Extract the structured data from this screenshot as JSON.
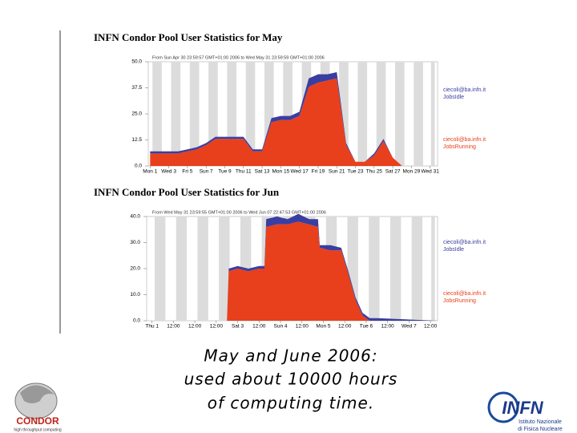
{
  "chart_data": [
    {
      "type": "stacked-area",
      "title": "INFN Condor Pool User Statistics for May",
      "subtitle": "From Sun Apr 30 23:59:57 GMT+01:00 2006 to Wed May 31 23:59:59 GMT+01:00 2006",
      "x": [
        1,
        2,
        3,
        4,
        5,
        6,
        7,
        8,
        9,
        10,
        11,
        12,
        13,
        14,
        15,
        16,
        17,
        18,
        19,
        20,
        21,
        22,
        23,
        24,
        25,
        26,
        27,
        28,
        29,
        30,
        31
      ],
      "series": [
        {
          "name": "ciecoli@ba.infn.it JobsRunning",
          "color": "#e8401c",
          "values": [
            6,
            6,
            6,
            6,
            7,
            8,
            10,
            13,
            13,
            13,
            13,
            7,
            7,
            21,
            22,
            22,
            24,
            38,
            40,
            41,
            42,
            10,
            2,
            2,
            5,
            12,
            4,
            0,
            0,
            0,
            0
          ]
        },
        {
          "name": "ciecoli@ba.infn.it JobsIdle",
          "color": "#3a3ea0",
          "values": [
            1,
            1,
            1,
            1,
            1,
            1,
            1,
            1,
            1,
            1,
            1,
            1,
            1,
            2,
            2,
            2,
            2,
            4,
            4,
            3,
            3,
            1,
            0,
            0,
            1,
            1,
            0,
            0,
            0,
            0,
            0
          ]
        }
      ],
      "xlim": [
        0.8,
        31.8
      ],
      "xticks": [
        {
          "value": 1,
          "label": "Mon 1"
        },
        {
          "value": 3,
          "label": "Wed 3"
        },
        {
          "value": 5,
          "label": "Fri 5"
        },
        {
          "value": 7,
          "label": "Sun 7"
        },
        {
          "value": 9,
          "label": "Tue 9"
        },
        {
          "value": 11,
          "label": "Thu 11"
        },
        {
          "value": 13,
          "label": "Sat 13"
        },
        {
          "value": 15,
          "label": "Mon 15"
        },
        {
          "value": 17,
          "label": "Wed 17"
        },
        {
          "value": 19,
          "label": "Fri 19"
        },
        {
          "value": 21,
          "label": "Sun 21"
        },
        {
          "value": 23,
          "label": "Tue 23"
        },
        {
          "value": 25,
          "label": "Thu 25"
        },
        {
          "value": 27,
          "label": "Sat 27"
        },
        {
          "value": 29,
          "label": "Mon 29"
        },
        {
          "value": 31,
          "label": "Wed 31"
        }
      ],
      "ylim": [
        0,
        50
      ],
      "yticks": [
        {
          "value": 0,
          "label": "0.0"
        },
        12.5,
        {
          "value": 25,
          "label": "25.0"
        },
        37.5,
        {
          "value": 50,
          "label": "50.0"
        }
      ]
    },
    {
      "type": "stacked-area",
      "title": "INFN Condor Pool User Statistics for Jun",
      "subtitle": "From Wed May 31 23:59:55 GMT+01:00 2006 to Wed Jun 07 22:47:53 GMT+01:00 2006",
      "x": [
        0,
        42,
        43,
        48,
        54,
        60,
        63,
        64,
        70,
        76,
        82,
        88,
        93,
        94,
        100,
        106,
        110,
        114,
        118,
        122,
        126,
        160
      ],
      "series": [
        {
          "name": "ciecoli@ba.infn.it JobsRunning",
          "color": "#e8401c",
          "values": [
            0,
            0,
            19,
            20,
            19,
            20,
            20,
            36,
            37,
            37,
            38,
            37,
            36,
            28,
            27,
            27,
            18,
            8,
            2,
            0,
            0,
            0
          ]
        },
        {
          "name": "ciecoli@ba.infn.it JobsIdle",
          "color": "#3a3ea0",
          "values": [
            0,
            0,
            1,
            1,
            1,
            1,
            1,
            3,
            3,
            2,
            3,
            2,
            3,
            1,
            2,
            1,
            1,
            1,
            1,
            1,
            1,
            0
          ]
        }
      ],
      "xlim": [
        -3,
        160
      ],
      "xticks": [
        {
          "value": 0,
          "label": "Thu 1"
        },
        {
          "value": 12,
          "label": "12:00"
        },
        {
          "value": 24,
          "label": "12:00"
        },
        {
          "value": 36,
          "label": "12:00"
        },
        {
          "value": 48,
          "label": "Sat 3"
        },
        {
          "value": 60,
          "label": "12:00"
        },
        {
          "value": 72,
          "label": "Sun 4"
        },
        {
          "value": 84,
          "label": "12:00"
        },
        {
          "value": 96,
          "label": "Mon 5"
        },
        {
          "value": 108,
          "label": "12:00"
        },
        {
          "value": 120,
          "label": "Tue 6"
        },
        {
          "value": 132,
          "label": "12:00"
        },
        {
          "value": 144,
          "label": "Wed 7"
        },
        {
          "value": 156,
          "label": "12:00"
        }
      ],
      "ylim": [
        0,
        40
      ],
      "yticks": [
        {
          "value": 0,
          "label": "0.0"
        },
        {
          "value": 10,
          "label": "10.0"
        },
        {
          "value": 20,
          "label": "20.0"
        },
        {
          "value": 30,
          "label": "30.0"
        },
        {
          "value": 40,
          "label": "40.0"
        }
      ]
    }
  ],
  "caption": [
    "May and June 2006:",
    "used about 10000 hours",
    "of computing time."
  ],
  "logos": {
    "condor": "CONDOR",
    "condor_tagline": "high throughput computing",
    "infn": "INFN",
    "infn_name_1": "Istituto Nazionale",
    "infn_name_2": "di Fisica Nucleare"
  }
}
